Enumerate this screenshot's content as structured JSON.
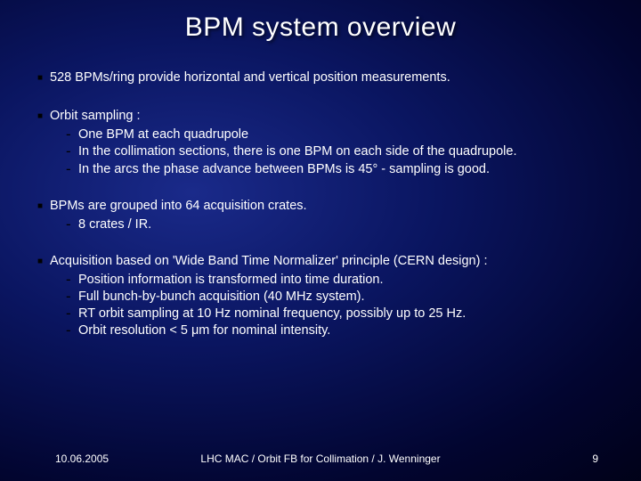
{
  "title": "BPM system overview",
  "bullets": [
    {
      "text": "528 BPMs/ring provide horizontal and vertical position measurements.",
      "sub": []
    },
    {
      "text": "Orbit sampling :",
      "sub": [
        "One BPM at each quadrupole",
        "In the collimation sections, there is one BPM on each side of the quadrupole.",
        "In the arcs the phase advance between BPMs is 45° - sampling is good."
      ]
    },
    {
      "text": "BPMs are grouped into 64 acquisition crates.",
      "sub": [
        "8 crates / IR."
      ]
    },
    {
      "text": "Acquisition based on 'Wide Band Time Normalizer' principle (CERN design)  :",
      "sub": [
        "Position information is transformed into time duration.",
        "Full bunch-by-bunch acquisition (40 MHz system).",
        "RT orbit sampling at 10 Hz nominal frequency, possibly up to 25 Hz.",
        "Orbit resolution < 5 μm for nominal intensity."
      ]
    }
  ],
  "footer": {
    "date": "10.06.2005",
    "center": "LHC MAC / Orbit FB for Collimation / J. Wenninger",
    "page": "9"
  },
  "style": {
    "background_gradient": [
      "#1a2a8a",
      "#0a1560",
      "#020530",
      "#000010"
    ],
    "title_color": "#ffffff",
    "text_color": "#ffffff",
    "l1_marker_color": "#000000",
    "l2_marker_color": "#000000",
    "title_fontsize": 30,
    "body_fontsize": 14.5,
    "footer_fontsize": 12
  }
}
